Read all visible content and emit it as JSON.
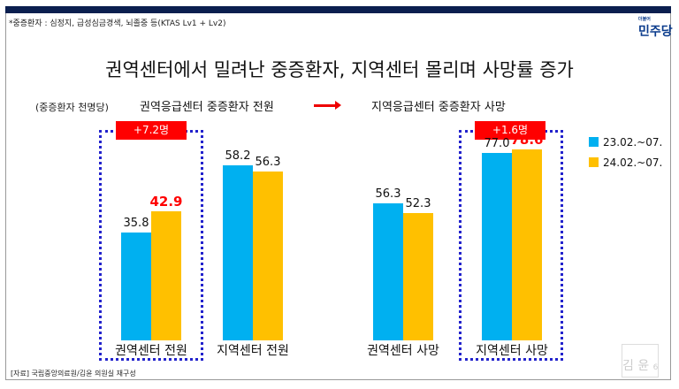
{
  "note": "*중증환자 : 심정지, 급성심금경색, 뇌졸중 등(KTAS Lv1 + Lv2)",
  "logo": {
    "small": "더불어",
    "main": "민주당"
  },
  "title": "권역센터에서 밀려난 중증환자, 지역센터 몰리며 사망률 증가",
  "unit": "(중증환자 천명당)",
  "subtitle_left": "권역응급센터 중증환자 전원",
  "subtitle_right": "지역응급센터 중증환자 사망",
  "badges": [
    "+7.2명",
    "+1.6명"
  ],
  "source": "[자료] 국립중앙의료원/김윤 의원실 재구성",
  "stamp": {
    "name": "김 윤",
    "page": "6"
  },
  "chart_data": {
    "type": "bar",
    "categories": [
      "권역센터 전원",
      "지역센터 전원",
      "권역센터 사망",
      "지역센터 사망"
    ],
    "series": [
      {
        "name": "23.02.~07.",
        "values": [
          35.8,
          58.2,
          56.3,
          77.0
        ],
        "color": "#00b0f0"
      },
      {
        "name": "24.02.~07.",
        "values": [
          42.9,
          56.3,
          52.3,
          78.6
        ],
        "color": "#ffc000"
      }
    ],
    "highlight_color": "#ff0000"
  }
}
